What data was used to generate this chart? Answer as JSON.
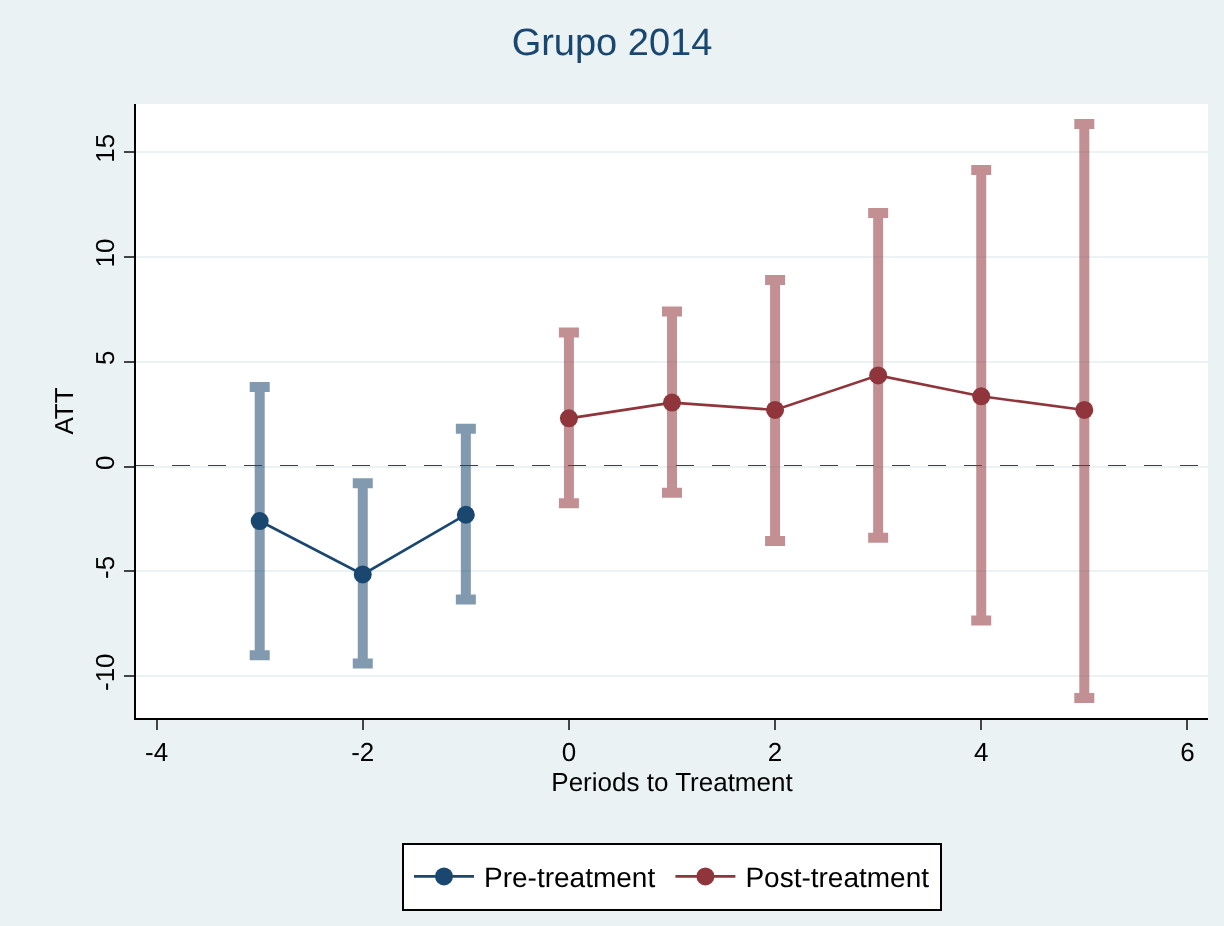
{
  "chart_data": {
    "type": "line",
    "title": "Grupo 2014",
    "xlabel": "Periods to Treatment",
    "ylabel": "ATT",
    "xlim": [
      -4.2,
      6.2
    ],
    "xticks": [
      -4,
      -2,
      0,
      2,
      4,
      6
    ],
    "ylim": [
      -12,
      17.3
    ],
    "yticks": [
      -10,
      -5,
      0,
      5,
      10,
      15
    ],
    "grid": "y",
    "legend": "bottom",
    "marker": "circle",
    "line_style": "solid",
    "ref_lines": [
      {
        "axis": "y",
        "value": 0,
        "color": "#404040",
        "line_style": "dashed"
      }
    ],
    "series": [
      {
        "name": "Pre-treatment",
        "color": "#1a476f",
        "x": [
          -3,
          -2,
          -1
        ],
        "values": [
          -2.6,
          -5.15,
          -2.3
        ],
        "errors": [
          [
            -9.0,
            3.8
          ],
          [
            -9.4,
            -0.8
          ],
          [
            -6.35,
            1.8
          ]
        ]
      },
      {
        "name": "Post-treatment",
        "color": "#90353b",
        "x": [
          0,
          1,
          2,
          3,
          4,
          5
        ],
        "values": [
          2.3,
          3.05,
          2.7,
          4.35,
          3.35,
          2.7
        ],
        "errors": [
          [
            -1.75,
            6.4
          ],
          [
            -1.25,
            7.4
          ],
          [
            -3.55,
            8.9
          ],
          [
            -3.4,
            12.1
          ],
          [
            -7.35,
            14.15
          ],
          [
            -11.05,
            16.35
          ]
        ]
      }
    ]
  }
}
